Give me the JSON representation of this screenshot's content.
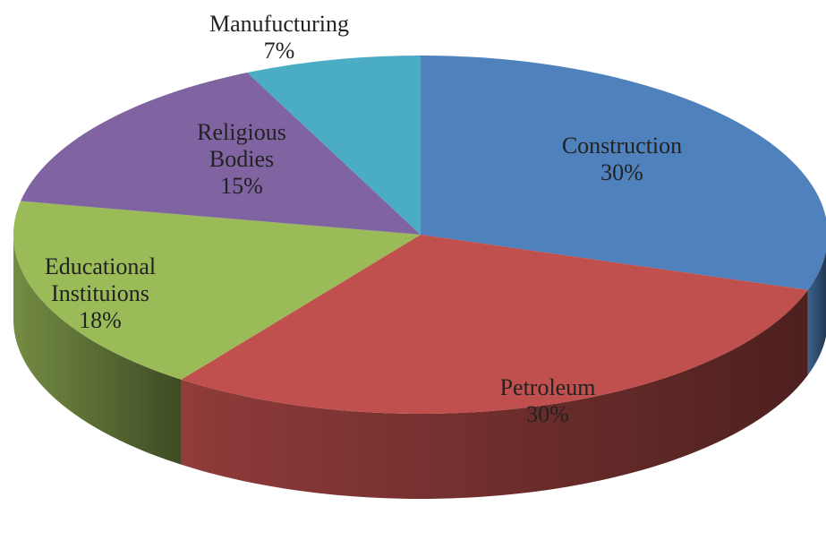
{
  "chart_data": {
    "type": "pie3d",
    "categories": [
      "Construction",
      "Petroleum",
      "Educational Instituions",
      "Religious Bodies",
      "Manufucturing"
    ],
    "values": [
      30,
      30,
      18,
      15,
      7
    ],
    "value_labels": [
      "30%",
      "30%",
      "18%",
      "15%",
      "7%"
    ],
    "colors": [
      "#4f81bd",
      "#c0504d",
      "#9bbb59",
      "#8064a2",
      "#4bacc6"
    ]
  }
}
